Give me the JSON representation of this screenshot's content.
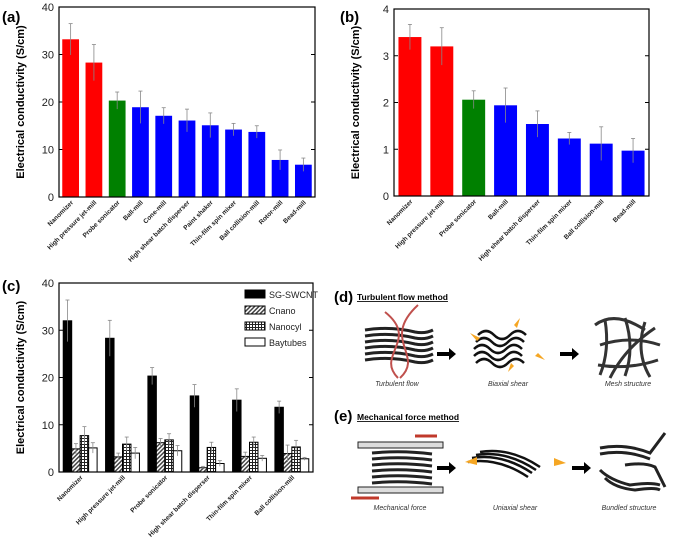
{
  "chart_data": [
    {
      "panel": "(a)",
      "type": "bar",
      "ylabel": "Electrical conductivity (S/cm)",
      "ylim": [
        0,
        40
      ],
      "yticks": [
        0,
        10,
        20,
        30,
        40
      ],
      "grid": false,
      "categories": [
        "Nanomizer",
        "High pressure jet-mill",
        "Probe sonicator",
        "Ball-mill",
        "Cone-mill",
        "High shear batch disperser",
        "Paint shaker",
        "Thin-film spin mixer",
        "Ball collision-mill",
        "Rotor-mill",
        "Bead-mill"
      ],
      "values": [
        33.2,
        28.3,
        20.3,
        18.9,
        17.1,
        16.1,
        15.1,
        14.2,
        13.7,
        7.8,
        6.8
      ],
      "errors": [
        3.3,
        3.8,
        1.8,
        3.4,
        1.7,
        2.4,
        2.6,
        1.3,
        1.3,
        2.1,
        1.4
      ],
      "colors": [
        "#ff0000",
        "#ff0000",
        "#008000",
        "#0000ff",
        "#0000ff",
        "#0000ff",
        "#0000ff",
        "#0000ff",
        "#0000ff",
        "#0000ff",
        "#0000ff"
      ]
    },
    {
      "panel": "(b)",
      "type": "bar",
      "ylabel": "Electrical conductivity (S/cm)",
      "ylim": [
        0,
        4
      ],
      "yticks": [
        0,
        1,
        2,
        3,
        4
      ],
      "grid": false,
      "categories": [
        "Nanomizer",
        "High pressure jet-mill",
        "Probe sonicator",
        "Ball-mill",
        "High shear batch disperser",
        "Thin-film spin mixer",
        "Ball collision-mill",
        "Bead-mill"
      ],
      "values": [
        3.4,
        3.2,
        2.06,
        1.94,
        1.54,
        1.23,
        1.12,
        0.97
      ],
      "errors": [
        0.27,
        0.4,
        0.19,
        0.37,
        0.28,
        0.13,
        0.36,
        0.26
      ],
      "colors": [
        "#ff0000",
        "#ff0000",
        "#008000",
        "#0000ff",
        "#0000ff",
        "#0000ff",
        "#0000ff",
        "#0000ff"
      ]
    },
    {
      "panel": "(c)",
      "type": "bar",
      "ylabel": "Electrical conductivity (S/cm)",
      "ylim": [
        0,
        40
      ],
      "yticks": [
        0,
        10,
        20,
        30,
        40
      ],
      "grid": false,
      "legend": "top-right",
      "categories": [
        "Nanomizer",
        "High pressure jet-mill",
        "Probe sonicator",
        "High shear batch disperser",
        "Thin-film spin mixer",
        "Ball collision-mill"
      ],
      "series": [
        {
          "name": "SG-SWCNT",
          "pattern": "solid-black",
          "values": [
            32,
            28.3,
            20.3,
            16.1,
            15.2,
            13.7
          ],
          "errors": [
            4.4,
            3.8,
            1.8,
            2.4,
            2.4,
            1.3
          ]
        },
        {
          "name": "Cnano",
          "pattern": "diagonal-hatch",
          "values": [
            4.9,
            3.2,
            6.2,
            0.9,
            3.3,
            3.9
          ],
          "errors": [
            1.1,
            0.8,
            0.9,
            0.3,
            0.9,
            1.8
          ]
        },
        {
          "name": "Nanocyl",
          "pattern": "grid-hatch",
          "values": [
            7.7,
            5.9,
            6.8,
            5.2,
            6.3,
            5.3
          ],
          "errors": [
            1.9,
            1.5,
            1.3,
            1.1,
            1.1,
            1.4
          ]
        },
        {
          "name": "Baytubes",
          "pattern": "white",
          "values": [
            5.1,
            4.0,
            4.5,
            1.8,
            2.9,
            2.8
          ],
          "errors": [
            1.1,
            1.2,
            1.1,
            0.6,
            0.6,
            0.3
          ]
        }
      ]
    }
  ],
  "schematics": {
    "d": {
      "panel": "(d)",
      "title": "Turbulent flow method",
      "captions": [
        "Turbulent flow",
        "Biaxial shear",
        "Mesh structure"
      ]
    },
    "e": {
      "panel": "(e)",
      "title": "Mechanical force method",
      "captions": [
        "Mechanical force",
        "Uniaxial shear",
        "Bundled structure"
      ]
    },
    "colors": {
      "flow_arrow": "#c0504d",
      "shear_arrow": "#f5a623",
      "tube": "#222222"
    }
  }
}
